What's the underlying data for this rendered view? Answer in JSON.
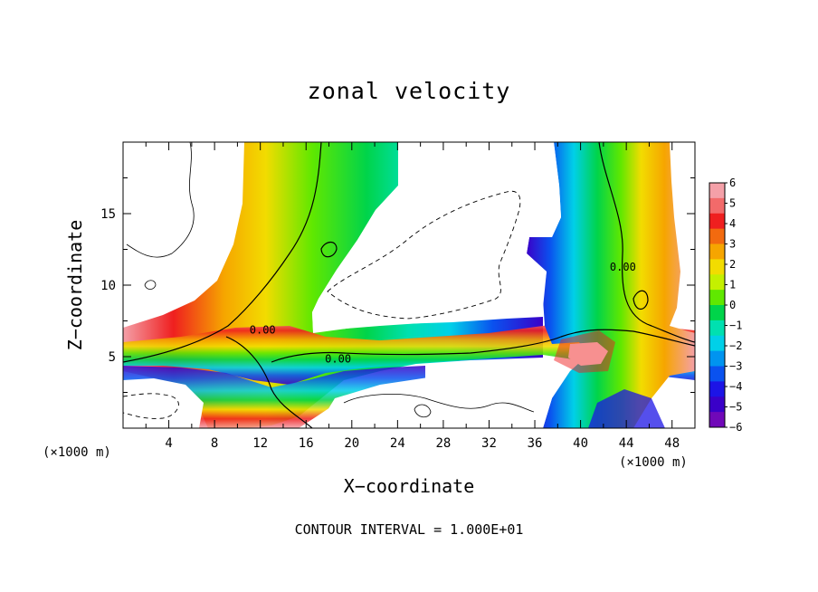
{
  "chart_data": {
    "type": "heatmap",
    "title": "zonal velocity",
    "xlabel": "X−coordinate",
    "ylabel": "Z−coordinate",
    "x_unit_note": "(×1000 m)",
    "x_unit_note_right": "(×1000 m)",
    "xlim": [
      0,
      50
    ],
    "ylim": [
      0,
      20
    ],
    "x_ticks": [
      "4",
      "8",
      "12",
      "16",
      "20",
      "24",
      "28",
      "32",
      "36",
      "40",
      "44",
      "48"
    ],
    "y_ticks": [
      "5",
      "10",
      "15"
    ],
    "colorbar": {
      "labels": [
        "6",
        "5",
        "4",
        "3",
        "2",
        "1",
        "0",
        "−1",
        "−2",
        "−3",
        "−4",
        "−5",
        "−6"
      ],
      "range": [
        -6,
        6
      ],
      "colors": [
        "#f4a0a8",
        "#f26a6a",
        "#ef1f1f",
        "#f26a0f",
        "#f6a500",
        "#f2dc00",
        "#c4f000",
        "#60e800",
        "#00d44a",
        "#00e0b0",
        "#00d0e8",
        "#0094f0",
        "#0a52ef",
        "#1c14e6",
        "#3a00c8",
        "#7008b8"
      ]
    },
    "contour_labels": [
      {
        "text": "0.00",
        "x": 12.2,
        "z": 6.6
      },
      {
        "text": "0.00",
        "x": 18.8,
        "z": 4.6
      },
      {
        "text": "0.00",
        "x": 43.7,
        "z": 11.0
      }
    ],
    "contour_interval_text": "CONTOUR INTERVAL = 1.000E+01"
  }
}
